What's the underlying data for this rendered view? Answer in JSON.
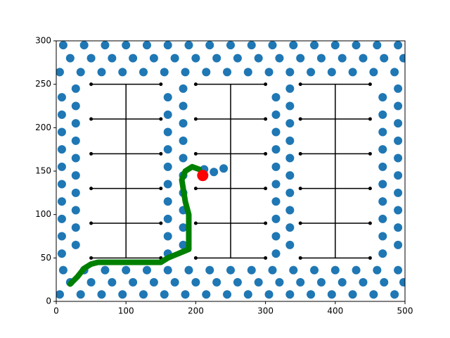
{
  "chart_data": {
    "type": "scatter",
    "xlim": [
      0,
      500
    ],
    "ylim": [
      0,
      300
    ],
    "xticks": [
      0,
      100,
      200,
      300,
      400,
      500
    ],
    "yticks": [
      0,
      50,
      100,
      150,
      200,
      250,
      300
    ],
    "series": [
      {
        "type": "scatter",
        "color": "#1f77b4",
        "x": [
          5,
          35,
          65,
          95,
          125,
          155,
          185,
          215,
          245,
          275,
          305,
          335,
          365,
          395,
          425,
          455,
          485,
          20,
          50,
          80,
          110,
          140,
          170,
          200,
          230,
          260,
          290,
          320,
          350,
          380,
          410,
          440,
          470,
          498,
          10,
          40,
          70,
          100,
          130,
          160,
          190,
          220,
          250,
          280,
          310,
          340,
          370,
          400,
          430,
          460,
          490,
          5,
          35,
          65,
          95,
          125,
          155,
          185,
          215,
          245,
          275,
          305,
          335,
          365,
          395,
          425,
          455,
          485,
          20,
          50,
          80,
          110,
          140,
          170,
          200,
          230,
          260,
          290,
          320,
          350,
          380,
          410,
          440,
          470,
          498,
          10,
          40,
          70,
          100,
          130,
          160,
          190,
          220,
          250,
          280,
          310,
          340,
          370,
          400,
          430,
          460,
          490,
          8,
          8,
          8,
          8,
          8,
          8,
          8,
          8,
          8,
          8,
          28,
          28,
          28,
          28,
          28,
          28,
          28,
          28,
          28,
          28,
          468,
          468,
          468,
          468,
          468,
          468,
          468,
          468,
          468,
          468,
          490,
          490,
          490,
          490,
          490,
          490,
          490,
          490,
          490,
          490,
          160,
          160,
          160,
          160,
          160,
          160,
          160,
          160,
          160,
          160,
          182,
          182,
          182,
          182,
          182,
          182,
          182,
          182,
          182,
          182,
          315,
          315,
          315,
          315,
          315,
          315,
          315,
          315,
          315,
          315,
          335,
          335,
          335,
          335,
          335,
          335,
          335,
          335,
          335,
          335,
          212,
          226,
          240
        ],
        "values": [
          8,
          8,
          8,
          8,
          8,
          8,
          8,
          8,
          8,
          8,
          8,
          8,
          8,
          8,
          8,
          8,
          8,
          22,
          22,
          22,
          22,
          22,
          22,
          22,
          22,
          22,
          22,
          22,
          22,
          22,
          22,
          22,
          22,
          22,
          36,
          36,
          36,
          36,
          36,
          36,
          36,
          36,
          36,
          36,
          36,
          36,
          36,
          36,
          36,
          36,
          36,
          264,
          264,
          264,
          264,
          264,
          264,
          264,
          264,
          264,
          264,
          264,
          264,
          264,
          264,
          264,
          264,
          264,
          280,
          280,
          280,
          280,
          280,
          280,
          280,
          280,
          280,
          280,
          280,
          280,
          280,
          280,
          280,
          280,
          280,
          295,
          295,
          295,
          295,
          295,
          295,
          295,
          295,
          295,
          295,
          295,
          295,
          295,
          295,
          295,
          295,
          295,
          55,
          75,
          95,
          115,
          135,
          155,
          175,
          195,
          215,
          235,
          65,
          85,
          105,
          125,
          145,
          165,
          185,
          205,
          225,
          245,
          55,
          75,
          95,
          115,
          135,
          155,
          175,
          195,
          215,
          235,
          65,
          85,
          105,
          125,
          145,
          165,
          185,
          205,
          225,
          245,
          55,
          75,
          95,
          115,
          135,
          155,
          175,
          195,
          215,
          235,
          65,
          85,
          105,
          125,
          145,
          165,
          185,
          205,
          225,
          245,
          55,
          75,
          95,
          115,
          135,
          155,
          175,
          195,
          215,
          235,
          65,
          85,
          105,
          125,
          145,
          165,
          185,
          205,
          225,
          245,
          152,
          149,
          153
        ]
      },
      {
        "type": "line",
        "color": "#000000",
        "marker": true,
        "x": [
          50,
          150,
          null,
          200,
          300,
          null,
          350,
          450,
          null,
          50,
          150,
          null,
          200,
          300,
          null,
          350,
          450,
          null,
          50,
          150,
          null,
          200,
          300,
          null,
          350,
          450,
          null,
          50,
          150,
          null,
          200,
          300,
          null,
          350,
          450,
          null,
          50,
          150,
          null,
          200,
          300,
          null,
          350,
          450,
          null,
          50,
          150,
          null,
          200,
          300,
          null,
          350,
          450
        ],
        "values": [
          50,
          50,
          null,
          50,
          50,
          null,
          50,
          50,
          null,
          90,
          90,
          null,
          90,
          90,
          null,
          90,
          90,
          null,
          130,
          130,
          null,
          130,
          130,
          null,
          130,
          130,
          null,
          170,
          170,
          null,
          170,
          170,
          null,
          170,
          170,
          null,
          210,
          210,
          null,
          210,
          210,
          null,
          210,
          210,
          null,
          250,
          250,
          null,
          250,
          250,
          null,
          250,
          250
        ]
      },
      {
        "type": "line",
        "color": "#000000",
        "marker": false,
        "x": [
          100,
          100,
          null,
          250,
          250,
          null,
          400,
          400
        ],
        "values": [
          50,
          250,
          null,
          50,
          250,
          null,
          50,
          250
        ]
      },
      {
        "type": "line",
        "color": "#008000",
        "marker": false,
        "x": [
          20,
          30,
          40,
          50,
          60,
          100,
          150,
          160,
          175,
          190,
          190,
          185,
          183,
          180,
          185,
          195,
          205
        ],
        "values": [
          20,
          28,
          38,
          43,
          45,
          45,
          45,
          50,
          55,
          60,
          100,
          115,
          125,
          140,
          150,
          155,
          152
        ]
      },
      {
        "type": "scatter",
        "color": "#ff0000",
        "x": [
          210
        ],
        "values": [
          145
        ]
      }
    ]
  }
}
